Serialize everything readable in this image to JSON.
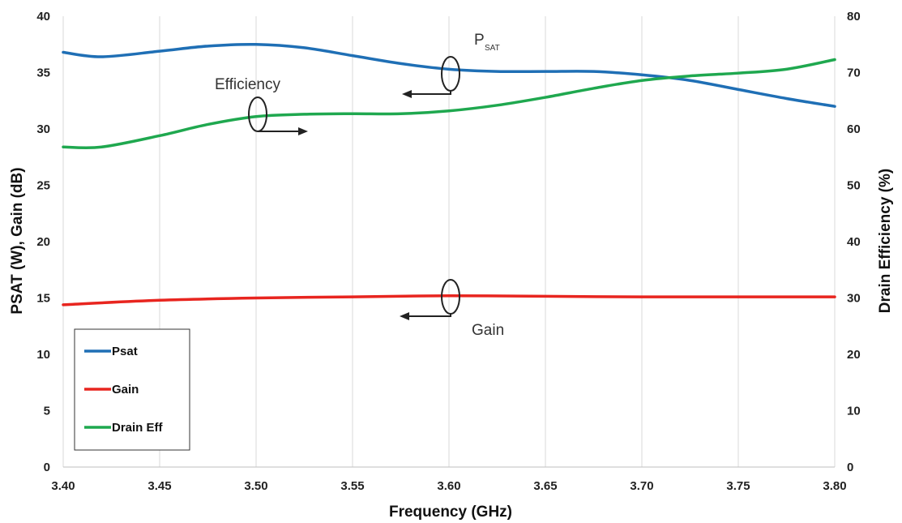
{
  "chart_data": {
    "type": "line",
    "xlabel": "Frequency (GHz)",
    "ylabel": "PSAT (W), Gain (dB)",
    "y2label": "Drain Efficiency (%)",
    "xlim": [
      3.4,
      3.8
    ],
    "ylim": [
      0,
      40
    ],
    "y2lim": [
      0,
      80
    ],
    "x_ticks": [
      "3.40",
      "3.45",
      "3.50",
      "3.55",
      "3.60",
      "3.65",
      "3.70",
      "3.75",
      "3.80"
    ],
    "y_ticks": [
      "0",
      "5",
      "10",
      "15",
      "20",
      "25",
      "30",
      "35",
      "40"
    ],
    "y2_ticks": [
      "0",
      "10",
      "20",
      "30",
      "40",
      "50",
      "60",
      "70",
      "80"
    ],
    "grid": "vertical",
    "legend_position": "bottom-left",
    "series": [
      {
        "name": "Psat",
        "axis": "left",
        "color": "#1f6fb5",
        "x": [
          3.4,
          3.42,
          3.45,
          3.475,
          3.5,
          3.525,
          3.55,
          3.575,
          3.6,
          3.625,
          3.65,
          3.675,
          3.7,
          3.725,
          3.75,
          3.775,
          3.8
        ],
        "y": [
          36.8,
          36.4,
          36.9,
          37.35,
          37.5,
          37.2,
          36.5,
          35.8,
          35.3,
          35.1,
          35.1,
          35.1,
          34.8,
          34.3,
          33.5,
          32.7,
          32.0
        ]
      },
      {
        "name": "Gain",
        "axis": "left",
        "color": "#e8251f",
        "x": [
          3.4,
          3.45,
          3.5,
          3.55,
          3.6,
          3.65,
          3.7,
          3.75,
          3.8
        ],
        "y": [
          14.4,
          14.8,
          15.0,
          15.1,
          15.2,
          15.15,
          15.1,
          15.1,
          15.1
        ]
      },
      {
        "name": "Drain Eff",
        "axis": "right",
        "color": "#1fa84f",
        "x": [
          3.4,
          3.42,
          3.45,
          3.475,
          3.5,
          3.525,
          3.55,
          3.575,
          3.6,
          3.625,
          3.65,
          3.675,
          3.7,
          3.725,
          3.75,
          3.775,
          3.8
        ],
        "y": [
          56.8,
          56.8,
          58.8,
          60.8,
          62.2,
          62.6,
          62.7,
          62.7,
          63.2,
          64.2,
          65.6,
          67.2,
          68.6,
          69.4,
          69.9,
          70.6,
          72.3
        ]
      }
    ],
    "annotations": [
      {
        "text": "P",
        "sub": "SAT",
        "arrow": "left"
      },
      {
        "text": "Efficiency",
        "arrow": "right"
      },
      {
        "text": "Gain",
        "arrow": "left"
      }
    ]
  }
}
